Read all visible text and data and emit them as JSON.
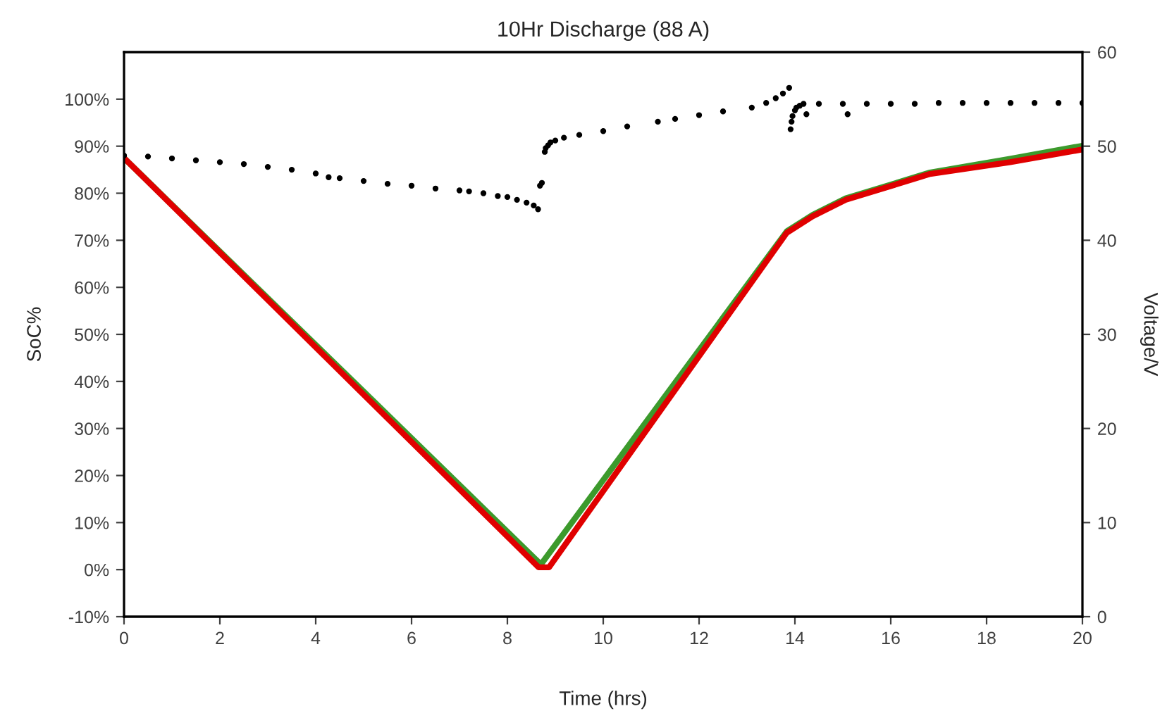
{
  "chart_data": {
    "type": "line",
    "title": "10Hr Discharge (88 A)",
    "xlabel": "Time (hrs)",
    "ylabel": "SoC%",
    "y2label": "Voltage/V",
    "xlim": [
      0,
      20
    ],
    "xticks": [
      0,
      2,
      4,
      6,
      8,
      10,
      12,
      14,
      16,
      18,
      20
    ],
    "ylim": [
      -10,
      110
    ],
    "yticks": [
      {
        "value": -10,
        "label": "-10%"
      },
      {
        "value": 0,
        "label": "0%"
      },
      {
        "value": 10,
        "label": "10%"
      },
      {
        "value": 20,
        "label": "20%"
      },
      {
        "value": 30,
        "label": "30%"
      },
      {
        "value": 40,
        "label": "40%"
      },
      {
        "value": 50,
        "label": "50%"
      },
      {
        "value": 60,
        "label": "60%"
      },
      {
        "value": 70,
        "label": "70%"
      },
      {
        "value": 80,
        "label": "80%"
      },
      {
        "value": 90,
        "label": "90%"
      },
      {
        "value": 100,
        "label": "100%"
      }
    ],
    "y2lim": [
      0,
      60
    ],
    "y2ticks": [
      0,
      10,
      20,
      30,
      40,
      50,
      60
    ],
    "grid": false,
    "legend": false,
    "line_style": "solid",
    "series": [
      {
        "color": "#3c9a2c",
        "x": [
          0,
          8.7,
          13.83,
          14.37,
          15.06,
          16.82,
          18.49,
          20
        ],
        "values": [
          87.5,
          1.1,
          71.9,
          75.4,
          78.9,
          84.4,
          87.3,
          90.1
        ]
      },
      {
        "color": "#e00000",
        "x": [
          0,
          8.65,
          8.87,
          13.83,
          14.37,
          15.06,
          16.82,
          18.49,
          20
        ],
        "values": [
          87.5,
          0.5,
          0.5,
          71.6,
          75.1,
          78.6,
          84.1,
          86.6,
          89.3
        ]
      },
      {
        "type": "scatter",
        "axis": "y2",
        "marker": "circle",
        "color": "#000000",
        "x": [
          0,
          0.5,
          1,
          1.5,
          2,
          2.5,
          3,
          3.5,
          4,
          4.27,
          4.5,
          5,
          5.5,
          6,
          6.5,
          7,
          7.2,
          7.5,
          7.8,
          8.0,
          8.2,
          8.4,
          8.55,
          8.64,
          8.68,
          8.72,
          8.78,
          8.8,
          8.85,
          8.9,
          9.0,
          9.18,
          9.5,
          10,
          10.5,
          11.14,
          11.5,
          12,
          12.5,
          13.1,
          13.4,
          13.6,
          13.75,
          13.88,
          13.91,
          13.93,
          13.95,
          14.0,
          14.03,
          14.1,
          14.18,
          14.24,
          14.5,
          15,
          15.1,
          15.5,
          16,
          16.5,
          17,
          17.5,
          18,
          18.5,
          19,
          19.5,
          20
        ],
        "values": [
          49.0,
          48.9,
          48.7,
          48.5,
          48.3,
          48.1,
          47.8,
          47.5,
          47.1,
          46.7,
          46.6,
          46.3,
          46.0,
          45.8,
          45.5,
          45.3,
          45.2,
          45.0,
          44.7,
          44.6,
          44.3,
          44.0,
          43.7,
          43.3,
          45.8,
          46.1,
          49.4,
          49.8,
          50.1,
          50.4,
          50.6,
          50.9,
          51.2,
          51.6,
          52.1,
          52.6,
          52.9,
          53.3,
          53.7,
          54.1,
          54.6,
          55.1,
          55.6,
          56.2,
          51.8,
          52.6,
          53.2,
          53.8,
          54.1,
          54.3,
          54.5,
          53.4,
          54.5,
          54.5,
          53.4,
          54.5,
          54.5,
          54.5,
          54.6,
          54.6,
          54.6,
          54.6,
          54.6,
          54.6,
          54.6
        ]
      }
    ]
  }
}
